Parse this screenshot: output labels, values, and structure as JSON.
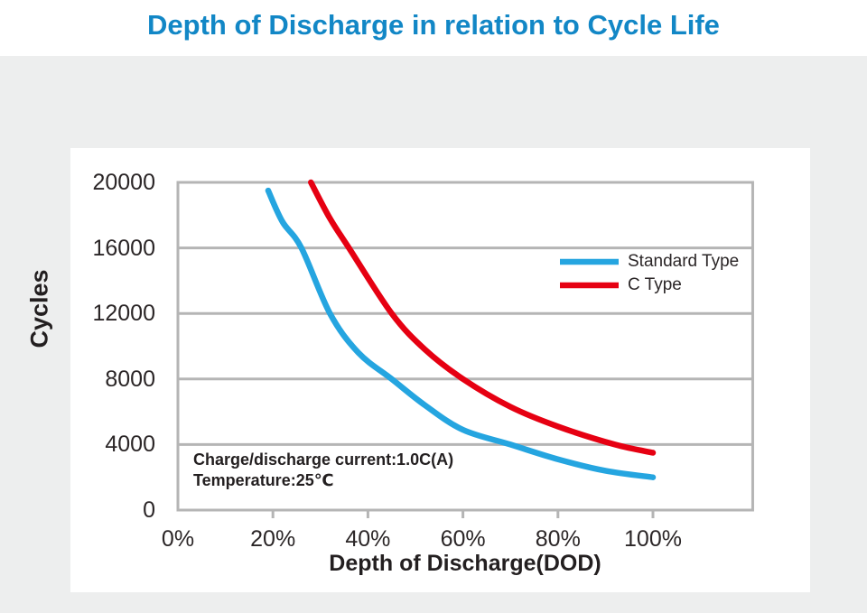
{
  "page": {
    "title": "Depth of Discharge in relation to Cycle Life"
  },
  "colors": {
    "title_blue": "#1287C6",
    "standard_type_blue": "#25A5E0",
    "c_type_red": "#E60012",
    "grid_gray": "#B5B5B5",
    "text_dark": "#2B2627",
    "band_gray": "#EDEEEE",
    "card_white": "#FFFFFF"
  },
  "chart_data": {
    "type": "line",
    "title": "Depth of Discharge in relation to Cycle Life",
    "xlabel": "Depth of Discharge(DOD)",
    "ylabel": "Cycles",
    "xlim": [
      0,
      121
    ],
    "ylim": [
      0,
      20000
    ],
    "grid": "horizontal-only",
    "legend_position": "upper-right-inside",
    "x_ticks": {
      "values": [
        0,
        20,
        40,
        60,
        80,
        100
      ],
      "labels": [
        "0%",
        "20%",
        "40%",
        "60%",
        "80%",
        "100%"
      ]
    },
    "y_ticks": {
      "values": [
        0,
        4000,
        8000,
        12000,
        16000,
        20000
      ],
      "labels": [
        "0",
        "4000",
        "8000",
        "12000",
        "16000",
        "20000"
      ]
    },
    "series": [
      {
        "name": "Standard Type",
        "color": "#25A5E0",
        "points": [
          [
            19,
            19500
          ],
          [
            22,
            17600
          ],
          [
            26,
            16000
          ],
          [
            32,
            12000
          ],
          [
            38,
            9600
          ],
          [
            45,
            8000
          ],
          [
            52,
            6400
          ],
          [
            60,
            4900
          ],
          [
            70,
            4000
          ],
          [
            80,
            3100
          ],
          [
            90,
            2400
          ],
          [
            100,
            2000
          ]
        ]
      },
      {
        "name": "C Type",
        "color": "#E60012",
        "points": [
          [
            28,
            20000
          ],
          [
            32,
            17800
          ],
          [
            36,
            16000
          ],
          [
            45,
            12000
          ],
          [
            52,
            9800
          ],
          [
            60,
            8000
          ],
          [
            70,
            6300
          ],
          [
            80,
            5100
          ],
          [
            92,
            4000
          ],
          [
            100,
            3500
          ]
        ]
      }
    ],
    "annotations": [
      "Charge/discharge current:1.0C(A)",
      "Temperature:25℃"
    ]
  },
  "annotation": {
    "line1": "Charge/discharge current:1.0C(A)",
    "line2": "Temperature:25℃"
  },
  "axis_labels": {
    "x": "Depth of Discharge(DOD)",
    "y": "Cycles"
  }
}
